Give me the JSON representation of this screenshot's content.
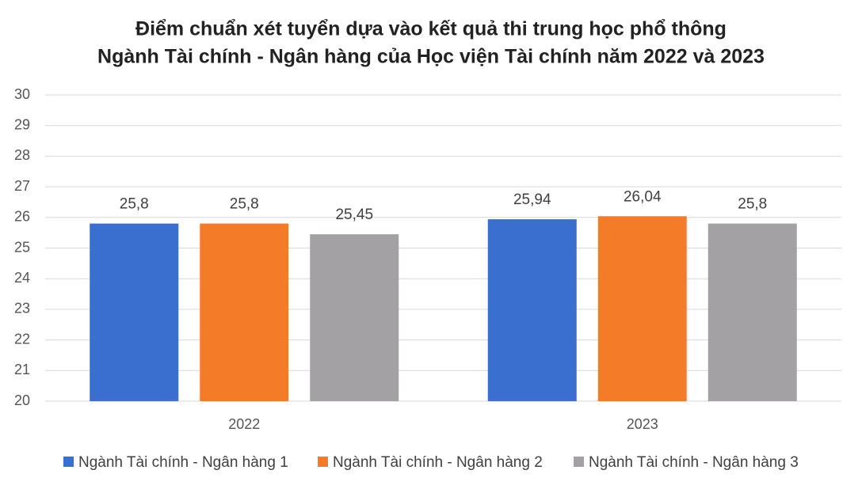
{
  "chart_data": {
    "type": "bar",
    "title": [
      "Điểm chuẩn xét tuyển dựa vào kết quả thi trung học phổ thông",
      "Ngành Tài chính - Ngân hàng của Học viện Tài chính năm 2022 và 2023"
    ],
    "categories": [
      "2022",
      "2023"
    ],
    "series": [
      {
        "name": "Ngành Tài chính - Ngân hàng 1",
        "color": "#3a6fcf",
        "values": [
          25.8,
          25.94
        ],
        "value_labels": [
          "25,8",
          "25,94"
        ]
      },
      {
        "name": "Ngành Tài chính - Ngân hàng 2",
        "color": "#f47c28",
        "values": [
          25.8,
          26.04
        ],
        "value_labels": [
          "25,8",
          "26,04"
        ]
      },
      {
        "name": "Ngành Tài chính - Ngân hàng 3",
        "color": "#a3a1a3",
        "values": [
          25.45,
          25.8
        ],
        "value_labels": [
          "25,45",
          "25,8"
        ]
      }
    ],
    "ylim": [
      20,
      30
    ],
    "yticks": [
      20,
      21,
      22,
      23,
      24,
      25,
      26,
      27,
      28,
      29,
      30
    ],
    "grid": true,
    "legend": "bottom"
  }
}
